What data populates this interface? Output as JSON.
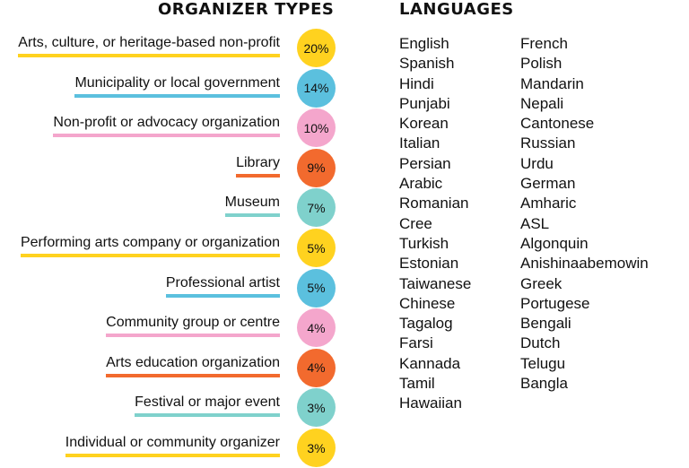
{
  "headings": {
    "organizer_types": "ORGANIZER TYPES",
    "languages": "LANGUAGES"
  },
  "colors": {
    "yellow": "#FFD21F",
    "blue": "#5BC0DE",
    "pink": "#F4A6CC",
    "orange": "#F26A2E",
    "teal": "#7FD1CC"
  },
  "chart_data": {
    "type": "table",
    "organizer_types": [
      {
        "label": "Arts, culture, or heritage-based non-profit",
        "value": "20%",
        "color": "yellow"
      },
      {
        "label": "Municipality or local government",
        "value": "14%",
        "color": "blue"
      },
      {
        "label": "Non-profit or advocacy organization",
        "value": "10%",
        "color": "pink"
      },
      {
        "label": "Library",
        "value": "9%",
        "color": "orange"
      },
      {
        "label": "Museum",
        "value": "7%",
        "color": "teal"
      },
      {
        "label": "Performing arts company or organization",
        "value": "5%",
        "color": "yellow"
      },
      {
        "label": "Professional artist",
        "value": "5%",
        "color": "blue"
      },
      {
        "label": "Community group or centre",
        "value": "4%",
        "color": "pink"
      },
      {
        "label": "Arts education organization",
        "value": "4%",
        "color": "orange"
      },
      {
        "label": "Festival or major event",
        "value": "3%",
        "color": "teal"
      },
      {
        "label": "Individual or community organizer",
        "value": "3%",
        "color": "yellow"
      }
    ],
    "languages": [
      [
        "English",
        "Spanish",
        "Hindi",
        "Punjabi",
        "Korean",
        "Italian",
        "Persian",
        "Arabic",
        "Romanian",
        "Cree",
        "Turkish",
        "Estonian",
        "Taiwanese",
        "Chinese",
        "Tagalog",
        "Farsi",
        "Kannada",
        "Tamil",
        "Hawaiian"
      ],
      [
        "French",
        "Polish",
        "Mandarin",
        "Nepali",
        "Cantonese",
        "Russian",
        "Urdu",
        "German",
        "Amharic",
        "ASL",
        "Algonquin",
        "Anishinaabemowin",
        "Greek",
        "Portugese",
        "Bengali",
        "Dutch",
        "Telugu",
        "Bangla"
      ]
    ]
  }
}
